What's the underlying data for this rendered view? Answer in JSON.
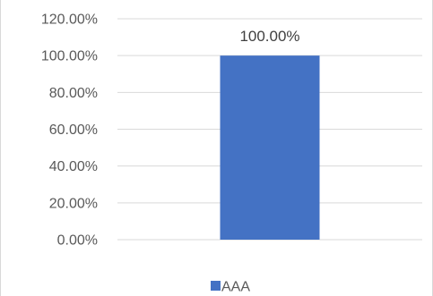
{
  "chart_data": {
    "type": "bar",
    "categories": [
      ""
    ],
    "series": [
      {
        "name": "AAA",
        "values": [
          1.0
        ],
        "color": "#4472c4"
      }
    ],
    "data_labels": [
      "100.00%"
    ],
    "ylim": [
      0,
      1.2
    ],
    "yticks": [
      0,
      0.2,
      0.4,
      0.6,
      0.8,
      1.0,
      1.2
    ],
    "ytick_labels": [
      "0.00%",
      "20.00%",
      "40.00%",
      "60.00%",
      "80.00%",
      "100.00%",
      "120.00%"
    ],
    "grid": true,
    "gridline_color": "#d9d9d9",
    "legend": {
      "position": "bottom",
      "entries": [
        "AAA"
      ]
    },
    "title": "",
    "xlabel": "",
    "ylabel": ""
  }
}
